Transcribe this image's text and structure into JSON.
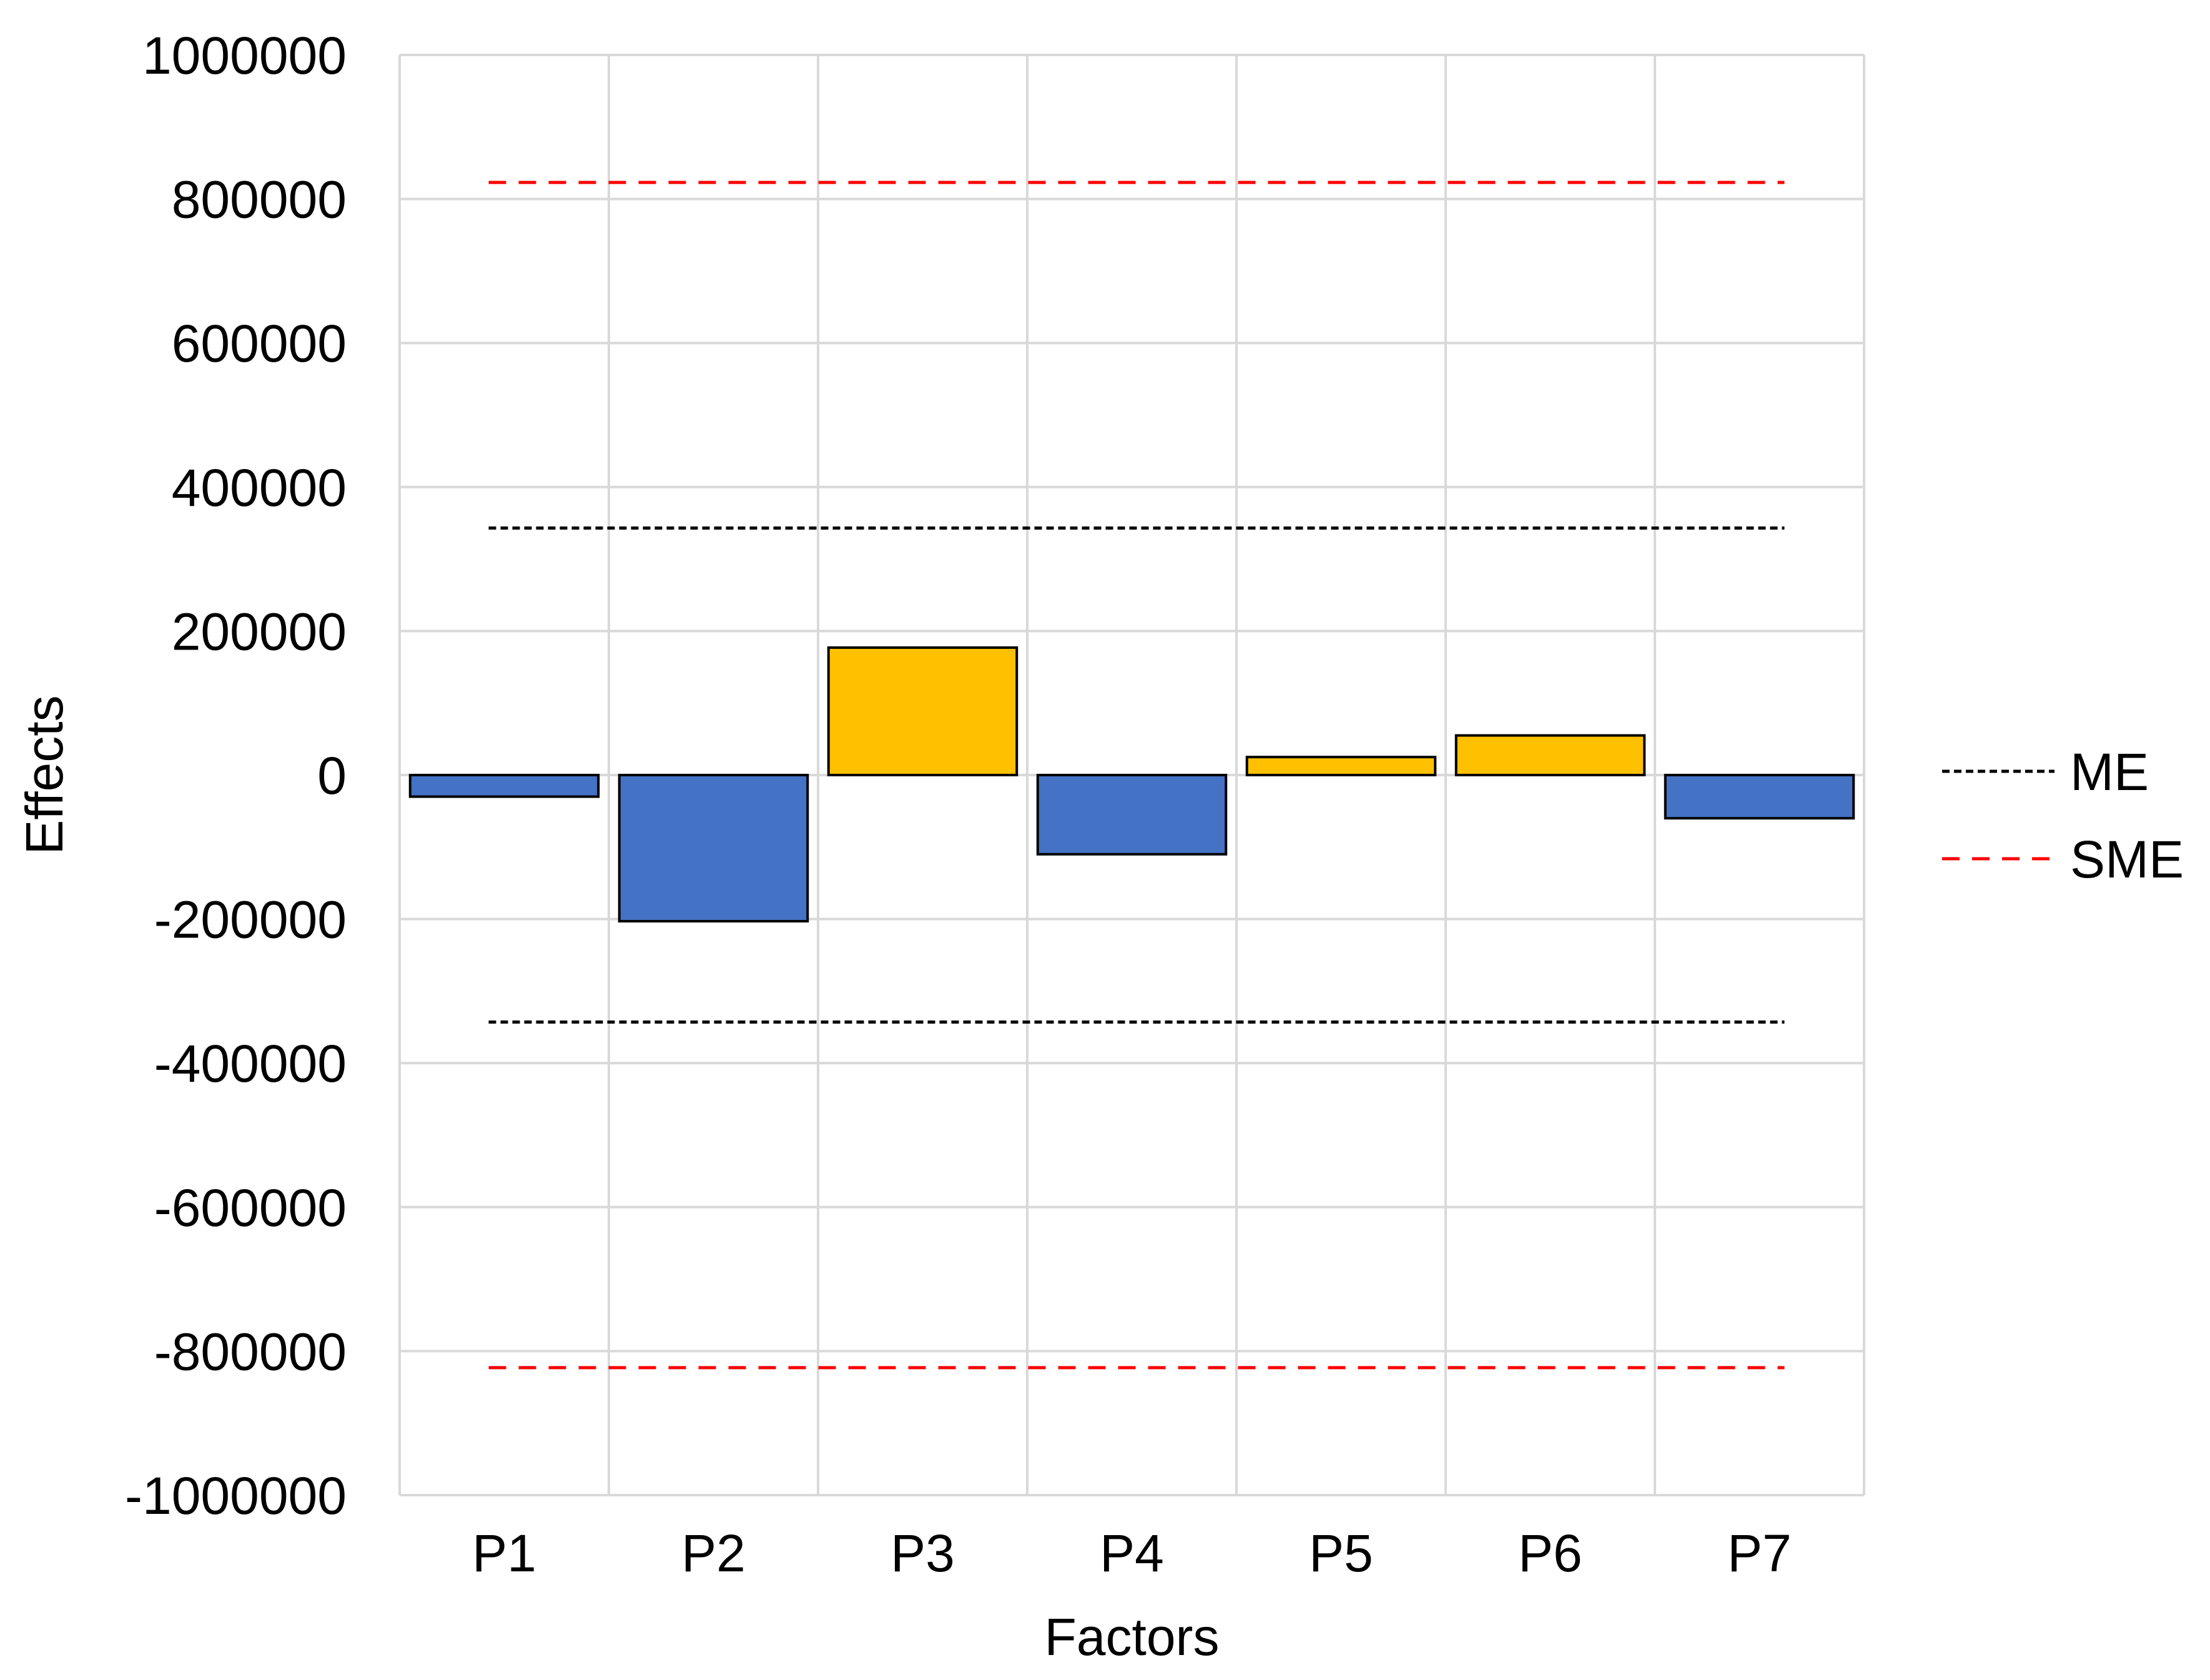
{
  "chart_data": {
    "type": "bar",
    "title": "",
    "xlabel": "Factors",
    "ylabel": "Effects",
    "categories": [
      "P1",
      "P2",
      "P3",
      "P4",
      "P5",
      "P6",
      "P7"
    ],
    "values": [
      -30000,
      -203000,
      177000,
      -110000,
      25000,
      55000,
      -60000
    ],
    "bar_colors": {
      "positive": "#FFC000",
      "negative": "#4472C4",
      "outline": "#000000"
    },
    "ylim": [
      -1000000,
      1000000
    ],
    "y_ticks": [
      1000000,
      800000,
      600000,
      400000,
      200000,
      0,
      -200000,
      -400000,
      -600000,
      -800000,
      -1000000
    ],
    "y_tick_labels": [
      "1000000",
      "800000",
      "600000",
      "400000",
      "200000",
      "0",
      "-200000",
      "-400000",
      "-600000",
      "-800000",
      "-1000000"
    ],
    "grid": true,
    "grid_color": "#D9D9D9",
    "reference_lines": [
      {
        "name": "ME",
        "values": [
          343000,
          -343000
        ],
        "color": "#000000",
        "style": "dotted"
      },
      {
        "name": "SME",
        "values": [
          823000,
          -823000
        ],
        "color": "#FF0000",
        "style": "dashed"
      }
    ],
    "legend": {
      "position": "right",
      "entries": [
        {
          "label": "ME",
          "color": "#000000",
          "style": "dotted"
        },
        {
          "label": "SME",
          "color": "#FF0000",
          "style": "dashed"
        }
      ]
    }
  }
}
